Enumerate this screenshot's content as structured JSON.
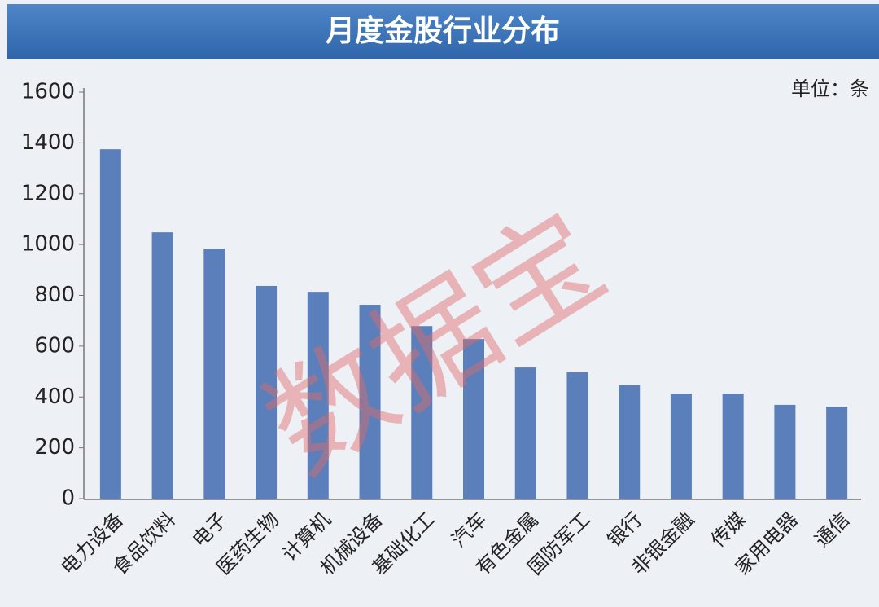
{
  "chart_data": {
    "type": "bar",
    "title": "月度金股行业分布",
    "unit_label": "单位：条",
    "watermark": "数据宝",
    "categories": [
      "电力设备",
      "食品饮料",
      "电子",
      "医药生物",
      "计算机",
      "机械设备",
      "基础化工",
      "汽车",
      "有色金属",
      "国防军工",
      "银行",
      "非银金融",
      "传媒",
      "家用电器",
      "通信"
    ],
    "values": [
      1375,
      1048,
      984,
      837,
      814,
      763,
      679,
      628,
      516,
      497,
      446,
      413,
      413,
      369,
      362
    ],
    "color": "#5a7fba",
    "ylim": [
      0,
      1600
    ],
    "yticks": [
      0,
      200,
      400,
      600,
      800,
      1000,
      1200,
      1400,
      1600
    ],
    "grid": false
  }
}
